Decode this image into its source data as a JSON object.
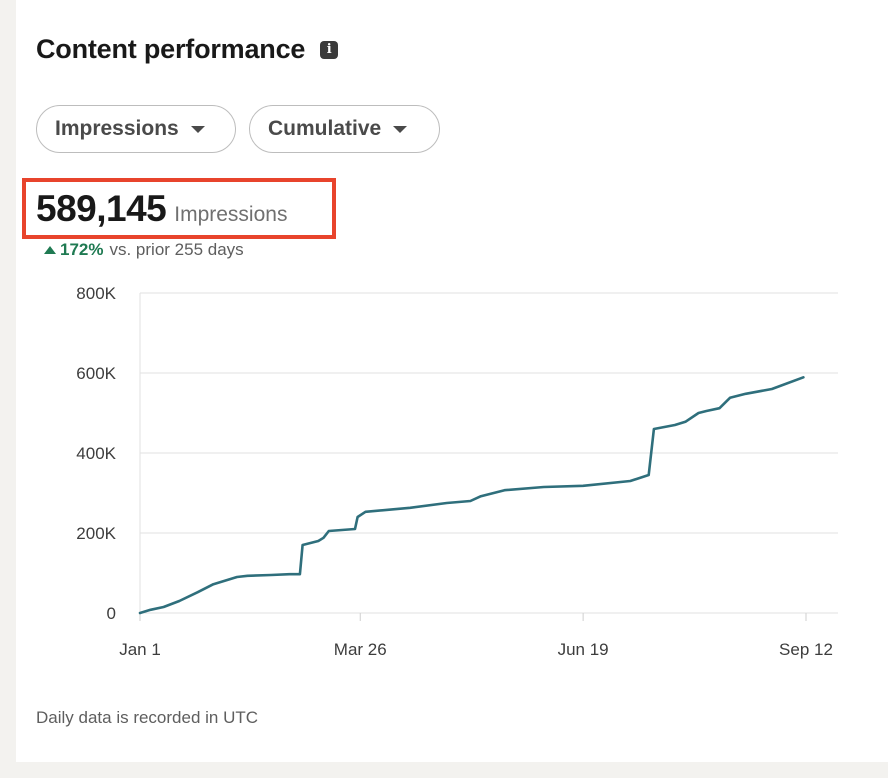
{
  "header": {
    "title": "Content performance",
    "info_icon": "info-icon"
  },
  "filters": {
    "metric_label": "Impressions",
    "mode_label": "Cumulative"
  },
  "summary": {
    "value": "589,145",
    "unit": "Impressions",
    "change_pct": "172%",
    "change_text": "vs. prior 255 days",
    "change_direction": "up",
    "change_color": "#1f7a52"
  },
  "chart_data": {
    "type": "line",
    "line_color": "#2f6f7c",
    "highlight_color": "#e8442c",
    "grid": true,
    "ylim": [
      0,
      800000
    ],
    "y_ticks": [
      0,
      200000,
      400000,
      600000,
      800000
    ],
    "y_tick_labels": [
      "0",
      "200K",
      "400K",
      "600K",
      "800K"
    ],
    "xlim": [
      "Jan 1",
      "Sep 12"
    ],
    "x_tick_labels": [
      "Jan 1",
      "Mar 26",
      "Jun 19",
      "Sep 12"
    ],
    "series": [
      {
        "x": [
          "Jan 1",
          "Jan 5",
          "Jan 10",
          "Jan 16",
          "Jan 23",
          "Jan 29",
          "Feb 7",
          "Feb 11",
          "Feb 20",
          "Feb 27",
          "Mar 3",
          "Mar 4",
          "Mar 10",
          "Mar 12",
          "Mar 14",
          "Mar 24",
          "Mar 25",
          "Mar 28",
          "Apr 14",
          "Apr 28",
          "May 7",
          "May 11",
          "May 20",
          "Jun 4",
          "Jun 19",
          "Jul 7",
          "Jul 14",
          "Jul 16",
          "Jul 24",
          "Jul 28",
          "Aug 2",
          "Aug 5",
          "Aug 10",
          "Aug 14",
          "Aug 20",
          "Aug 30",
          "Sep 11"
        ],
        "y": [
          0,
          8000,
          15000,
          30000,
          52000,
          72000,
          90000,
          93000,
          95000,
          97000,
          97000,
          170000,
          180000,
          188000,
          205000,
          210000,
          240000,
          253000,
          263000,
          275000,
          280000,
          292000,
          307000,
          315000,
          318000,
          330000,
          345000,
          460000,
          470000,
          478000,
          500000,
          505000,
          512000,
          538000,
          548000,
          560000,
          589145
        ]
      }
    ]
  },
  "footer": {
    "note": "Daily data is recorded in UTC"
  }
}
